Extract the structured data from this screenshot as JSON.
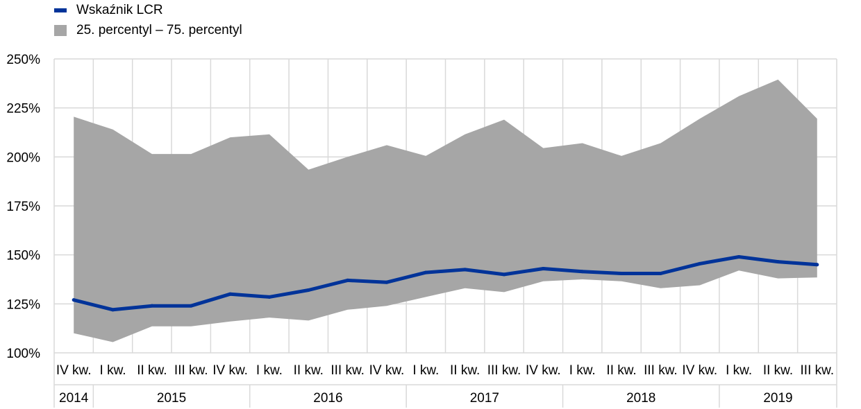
{
  "legend": {
    "line_label": "Wskaźnik LCR",
    "band_label": "25. percentyl – 75. percentyl"
  },
  "colors": {
    "line": "#003399",
    "band": "#a6a6a6",
    "grid": "#d9d9d9"
  },
  "chart_data": {
    "type": "area",
    "title": "",
    "xlabel": "",
    "ylabel": "",
    "ylim": [
      100,
      250
    ],
    "y_ticks": [
      100,
      125,
      150,
      175,
      200,
      225,
      250
    ],
    "y_tick_labels": [
      "100%",
      "125%",
      "150%",
      "175%",
      "200%",
      "225%",
      "250%"
    ],
    "grid": true,
    "legend_position": "top-left",
    "categories": [
      "IV kw.",
      "I kw.",
      "II kw.",
      "III kw.",
      "IV kw.",
      "I kw.",
      "II kw.",
      "III kw.",
      "IV kw.",
      "I kw.",
      "II kw.",
      "III kw.",
      "IV kw.",
      "I kw.",
      "II kw.",
      "III kw.",
      "IV kw.",
      "I kw.",
      "II kw.",
      "III kw."
    ],
    "year_groups": [
      {
        "label": "2014",
        "count": 1
      },
      {
        "label": "2015",
        "count": 4
      },
      {
        "label": "2016",
        "count": 4
      },
      {
        "label": "2017",
        "count": 4
      },
      {
        "label": "2018",
        "count": 4
      },
      {
        "label": "2019",
        "count": 3
      }
    ],
    "series": [
      {
        "name": "Wskaźnik LCR",
        "type": "line",
        "values": [
          127,
          122,
          124,
          124,
          130,
          128.5,
          132,
          137,
          136,
          141,
          142.5,
          140,
          143,
          141.5,
          140.5,
          140.5,
          145.5,
          149,
          146.5,
          145
        ]
      },
      {
        "name": "25. percentyl – 75. percentyl",
        "type": "band",
        "lower": [
          110,
          105.5,
          113.5,
          113.5,
          116,
          118,
          116.5,
          122,
          124,
          128.5,
          133,
          131,
          136.5,
          137.5,
          136.5,
          133,
          134.5,
          142,
          138,
          138.5
        ],
        "upper": [
          220.5,
          214,
          201.5,
          201.5,
          210,
          211.5,
          193.5,
          200,
          206,
          200.5,
          211.5,
          219,
          204.5,
          207,
          200.5,
          207,
          219.5,
          231,
          239.5,
          219.5
        ]
      }
    ]
  }
}
